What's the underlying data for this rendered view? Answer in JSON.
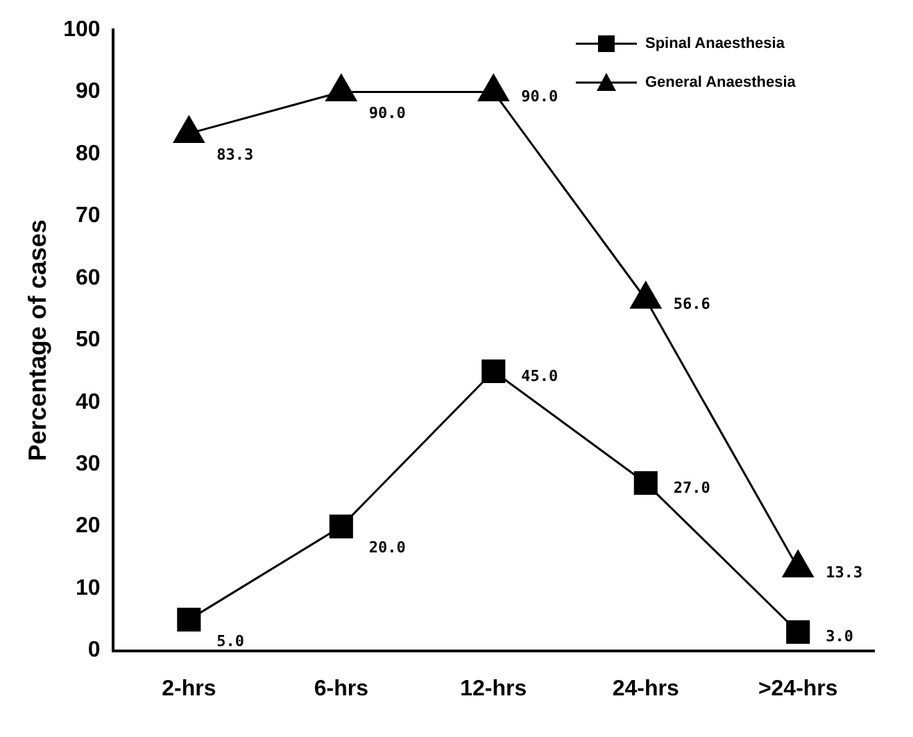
{
  "chart_data": {
    "type": "line",
    "ylabel": "Percentage of cases",
    "categories": [
      "2-hrs",
      "6-hrs",
      "12-hrs",
      "24-hrs",
      ">24-hrs"
    ],
    "series": [
      {
        "name": "Spinal Anaesthesia",
        "color": "#000000",
        "marker": "square",
        "values": [
          5.0,
          20.0,
          45.0,
          27.0,
          3.0
        ],
        "value_labels": [
          "5.0",
          "20.0",
          "45.0",
          "27.0",
          "3.0"
        ]
      },
      {
        "name": "General Anaesthesia",
        "color": "#000000",
        "marker": "triangle",
        "values": [
          83.3,
          90.0,
          90.0,
          56.6,
          13.3
        ],
        "value_labels": [
          "83.3",
          "90.0",
          "90.0",
          "56.6",
          "13.3"
        ]
      }
    ],
    "ylim": [
      0,
      100
    ],
    "yticks": [
      0,
      10,
      20,
      30,
      40,
      50,
      60,
      70,
      80,
      90,
      100
    ],
    "grid": false,
    "legend": "top right",
    "line_style": "solid"
  }
}
